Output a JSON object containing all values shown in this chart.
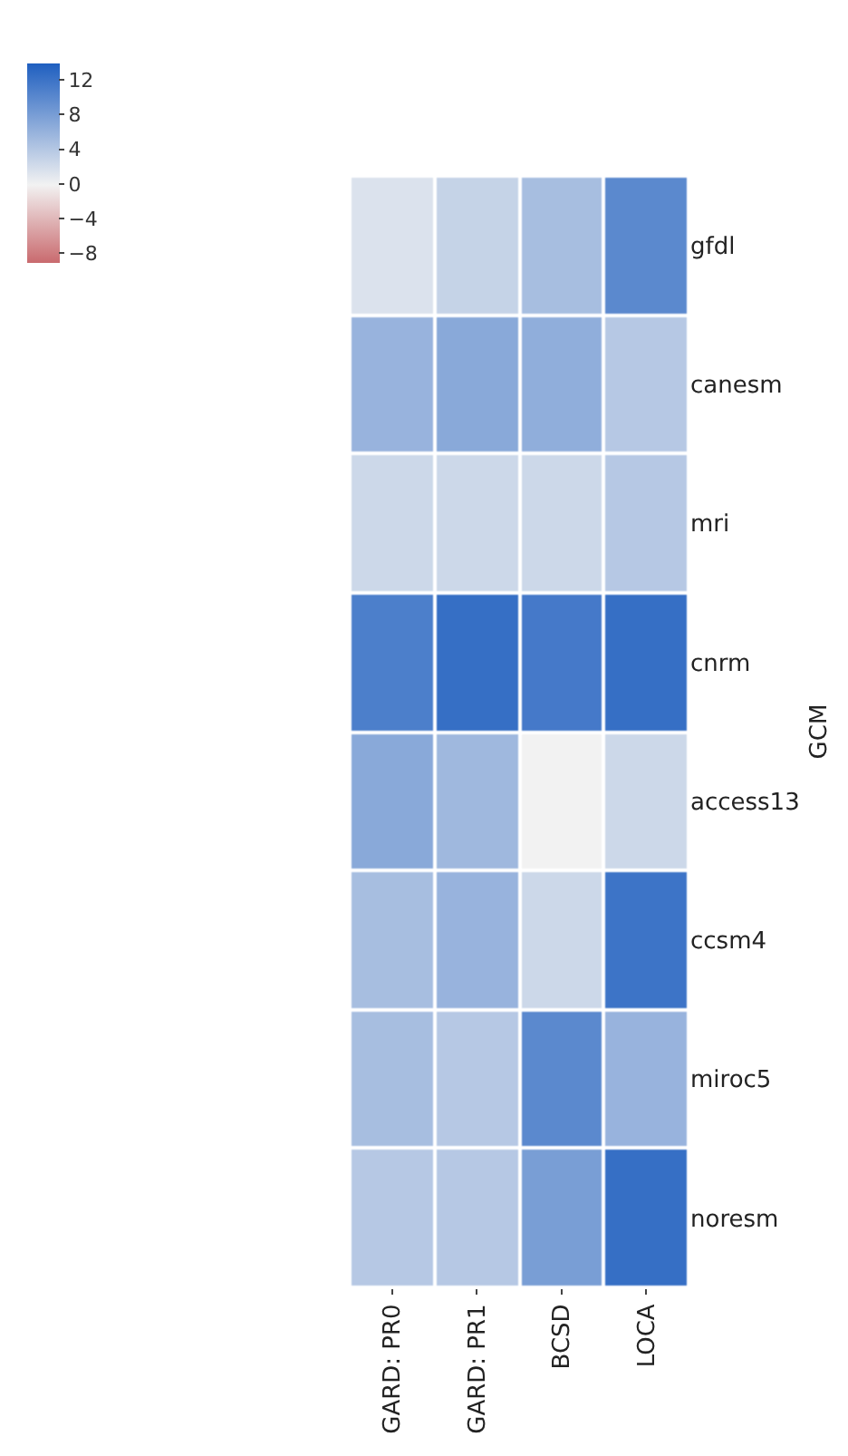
{
  "chart_data": {
    "type": "heatmap",
    "ylabel": "GCM",
    "categories": [
      "GARD: PR0",
      "GARD: PR1",
      "BCSD",
      "LOCA"
    ],
    "y_categories": [
      "gfdl",
      "canesm",
      "mri",
      "cnrm",
      "access13",
      "ccsm4",
      "miroc5",
      "noresm"
    ],
    "cells": [
      [
        1.5,
        3,
        5,
        10
      ],
      [
        6,
        7,
        6.5,
        4
      ],
      [
        2.5,
        2.5,
        2.5,
        4
      ],
      [
        11,
        12.5,
        11.5,
        12.5
      ],
      [
        7,
        5.5,
        0,
        2.5
      ],
      [
        5,
        6,
        2.5,
        12
      ],
      [
        5,
        4,
        10,
        6
      ],
      [
        4,
        4,
        8,
        12.5
      ]
    ],
    "clim": [
      -9,
      14
    ],
    "cticks": [
      12,
      8,
      4,
      0,
      -4,
      -8
    ]
  }
}
